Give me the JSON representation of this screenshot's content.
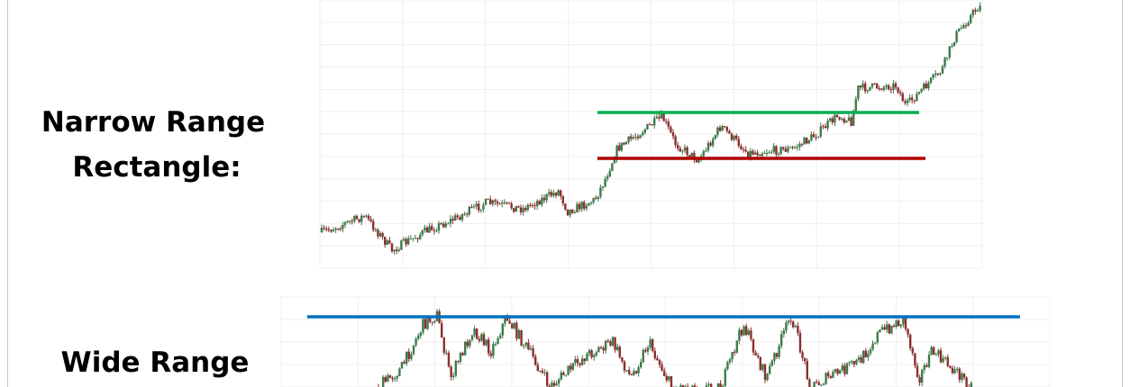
{
  "narrow_range": {
    "label_lines": [
      "Narrow Range",
      "Rectangle:"
    ]
  },
  "wide_range": {
    "label_lines": [
      "Wide Range"
    ]
  }
}
